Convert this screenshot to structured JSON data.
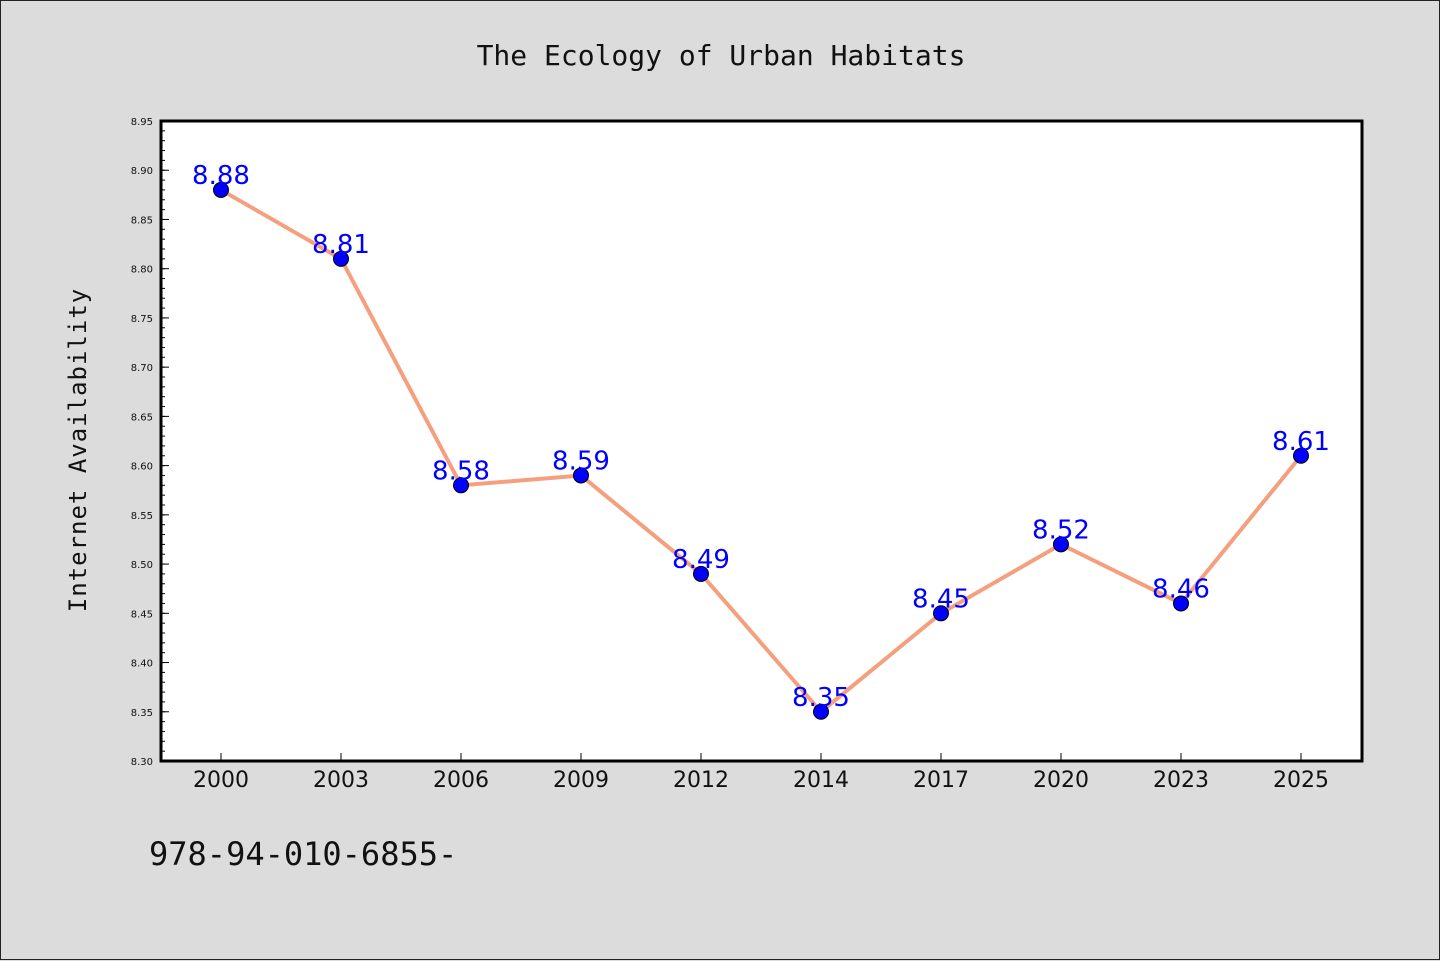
{
  "chart_data": {
    "type": "line",
    "title": "The Ecology of Urban Habitats",
    "xlabel": "",
    "ylabel": "Internet Availability",
    "categories": [
      "2000",
      "2003",
      "2006",
      "2009",
      "2012",
      "2014",
      "2017",
      "2020",
      "2023",
      "2025"
    ],
    "series": [
      {
        "values": [
          8.88,
          8.81,
          8.58,
          8.59,
          8.49,
          8.35,
          8.45,
          8.52,
          8.46,
          8.61
        ],
        "data_labels": [
          "8.88",
          "8.81",
          "8.58",
          "8.59",
          "8.49",
          "8.35",
          "8.45",
          "8.52",
          "8.46",
          "8.61"
        ]
      }
    ],
    "ylim": [
      8.3,
      8.95
    ],
    "yticks": [
      "8.30",
      "8.35",
      "8.40",
      "8.45",
      "8.50",
      "8.55",
      "8.60",
      "8.65",
      "8.70",
      "8.75",
      "8.80",
      "8.85",
      "8.90",
      "8.95"
    ],
    "grid": false,
    "legend": "none",
    "colors": {
      "line": "#f4a07e",
      "marker": "#0000ff",
      "marker_edge": "#000000",
      "data_label": "#0000ff",
      "plot_bg": "#ffffff",
      "figure_bg": "#dcdcdc"
    }
  },
  "footnote": "978-94-010-6855-"
}
